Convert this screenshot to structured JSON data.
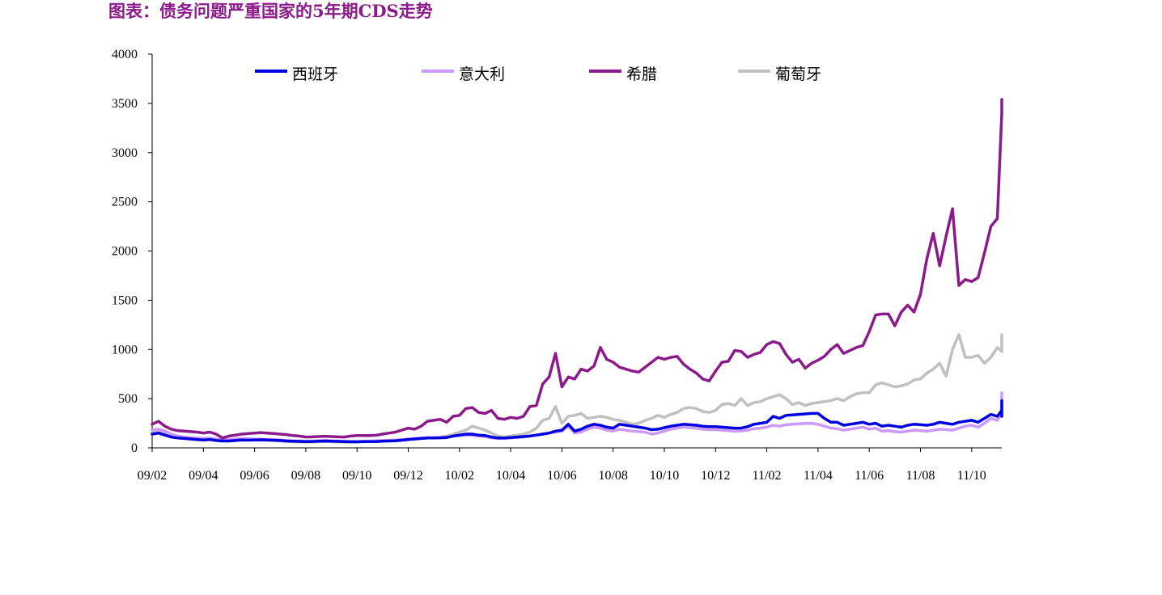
{
  "title": "图表：债务问题严重国家的5年期CDS走势",
  "chart_data": {
    "type": "line",
    "title": "图表：债务问题严重国家的5年期CDS走势",
    "xlabel": "",
    "ylabel": "",
    "ylim": [
      0,
      4000
    ],
    "yticks": [
      "0",
      "500",
      "1000",
      "1500",
      "2000",
      "2500",
      "3000",
      "3500",
      "4000"
    ],
    "xticks": [
      "09/02",
      "09/04",
      "09/06",
      "09/08",
      "09/10",
      "09/12",
      "10/02",
      "10/04",
      "10/06",
      "10/08",
      "10/10",
      "10/12",
      "11/02",
      "11/04",
      "11/06",
      "11/08",
      "11/10"
    ],
    "x_start": "09/02",
    "x_step_months": 0.25,
    "grid": false,
    "legend_position": "top",
    "series": [
      {
        "name": "西班牙",
        "color": "#0000E0",
        "values": [
          140,
          150,
          130,
          110,
          100,
          95,
          90,
          85,
          80,
          85,
          75,
          70,
          70,
          75,
          80,
          78,
          80,
          82,
          80,
          78,
          75,
          70,
          68,
          66,
          64,
          65,
          68,
          70,
          68,
          66,
          64,
          62,
          62,
          63,
          64,
          65,
          68,
          70,
          72,
          78,
          85,
          90,
          95,
          100,
          100,
          102,
          105,
          120,
          130,
          140,
          140,
          130,
          125,
          110,
          100,
          100,
          105,
          110,
          115,
          120,
          130,
          140,
          150,
          170,
          180,
          240,
          170,
          190,
          220,
          240,
          230,
          210,
          200,
          240,
          230,
          220,
          210,
          200,
          185,
          190,
          205,
          220,
          230,
          240,
          235,
          230,
          220,
          215,
          215,
          210,
          205,
          200,
          200,
          215,
          240,
          250,
          260,
          320,
          300,
          330,
          335,
          340,
          345,
          350,
          350,
          300,
          260,
          260,
          230,
          240,
          250,
          260,
          240,
          250,
          220,
          230,
          220,
          210,
          230,
          240,
          235,
          230,
          240,
          260,
          250,
          240,
          260,
          270,
          280,
          260,
          300,
          340,
          320,
          380,
          400,
          360,
          370,
          380,
          400,
          420,
          390,
          420,
          400,
          380,
          390,
          380,
          320,
          380,
          420,
          450,
          480,
          380
        ]
      },
      {
        "name": "意大利",
        "color": "#CC99FF",
        "values": [
          180,
          190,
          170,
          140,
          120,
          110,
          105,
          100,
          95,
          100,
          90,
          80,
          85,
          90,
          95,
          92,
          90,
          88,
          85,
          82,
          80,
          75,
          72,
          70,
          68,
          70,
          72,
          75,
          72,
          70,
          68,
          66,
          66,
          68,
          70,
          72,
          75,
          78,
          80,
          85,
          90,
          95,
          100,
          105,
          105,
          108,
          110,
          120,
          125,
          130,
          128,
          120,
          115,
          100,
          95,
          95,
          100,
          105,
          110,
          120,
          130,
          140,
          150,
          160,
          170,
          220,
          150,
          160,
          190,
          210,
          200,
          180,
          170,
          190,
          180,
          170,
          165,
          160,
          140,
          150,
          170,
          190,
          200,
          210,
          205,
          200,
          190,
          185,
          185,
          180,
          175,
          170,
          170,
          180,
          195,
          200,
          210,
          230,
          220,
          235,
          240,
          245,
          248,
          250,
          240,
          220,
          200,
          195,
          180,
          190,
          200,
          210,
          190,
          200,
          170,
          175,
          165,
          160,
          170,
          180,
          175,
          170,
          180,
          190,
          185,
          180,
          200,
          220,
          230,
          210,
          250,
          300,
          280,
          350,
          400,
          360,
          380,
          390,
          420,
          470,
          450,
          520,
          480,
          460,
          470,
          450,
          400,
          480,
          530,
          540,
          560,
          460
        ]
      },
      {
        "name": "希腊",
        "color": "#8B1A8B",
        "values": [
          240,
          270,
          220,
          190,
          175,
          170,
          165,
          160,
          150,
          160,
          140,
          100,
          120,
          130,
          140,
          145,
          150,
          155,
          150,
          145,
          140,
          135,
          125,
          120,
          110,
          112,
          115,
          118,
          115,
          112,
          110,
          120,
          125,
          125,
          126,
          128,
          140,
          150,
          160,
          180,
          200,
          190,
          220,
          270,
          280,
          290,
          260,
          320,
          330,
          400,
          410,
          360,
          350,
          380,
          300,
          290,
          310,
          300,
          320,
          420,
          430,
          650,
          720,
          960,
          620,
          720,
          700,
          800,
          780,
          830,
          1020,
          900,
          870,
          820,
          800,
          780,
          770,
          820,
          870,
          920,
          900,
          920,
          930,
          850,
          800,
          760,
          700,
          680,
          780,
          870,
          880,
          990,
          980,
          920,
          950,
          970,
          1050,
          1080,
          1060,
          950,
          870,
          900,
          810,
          860,
          890,
          930,
          1000,
          1050,
          960,
          990,
          1020,
          1040,
          1180,
          1350,
          1360,
          1360,
          1240,
          1380,
          1450,
          1380,
          1560,
          1920,
          2180,
          1850,
          2150,
          2430,
          1650,
          1710,
          1690,
          1730,
          1980,
          2250,
          2330,
          3400,
          3540
        ]
      },
      {
        "name": "葡萄牙",
        "color": "#C0C0C0",
        "values": [
          160,
          170,
          150,
          120,
          110,
          100,
          95,
          90,
          88,
          90,
          80,
          70,
          75,
          80,
          85,
          82,
          80,
          78,
          75,
          72,
          70,
          65,
          62,
          60,
          58,
          60,
          62,
          65,
          62,
          60,
          58,
          58,
          60,
          62,
          64,
          66,
          70,
          75,
          78,
          82,
          86,
          90,
          95,
          100,
          100,
          110,
          120,
          140,
          160,
          180,
          220,
          200,
          180,
          150,
          120,
          110,
          120,
          130,
          140,
          160,
          200,
          280,
          300,
          420,
          250,
          320,
          330,
          350,
          300,
          310,
          320,
          310,
          290,
          280,
          260,
          240,
          250,
          280,
          300,
          330,
          310,
          340,
          360,
          400,
          410,
          400,
          370,
          360,
          380,
          440,
          450,
          430,
          500,
          430,
          460,
          470,
          500,
          520,
          540,
          500,
          440,
          460,
          430,
          450,
          460,
          470,
          480,
          500,
          480,
          520,
          550,
          560,
          560,
          640,
          660,
          640,
          620,
          630,
          650,
          690,
          700,
          760,
          800,
          860,
          730,
          1000,
          1150,
          920,
          920,
          940,
          860,
          920,
          1020,
          980,
          1100,
          1050,
          1150,
          1140,
          1120,
          1140,
          1060,
          980,
          1030,
          1050,
          1060,
          1120,
          1040
        ]
      }
    ]
  }
}
